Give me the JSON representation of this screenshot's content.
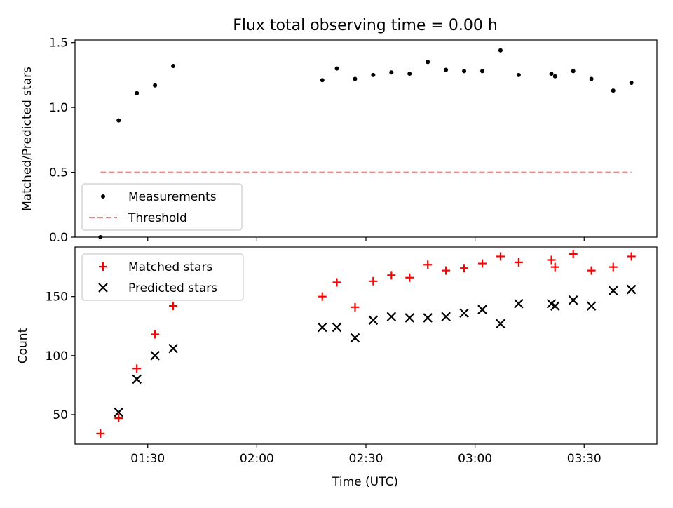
{
  "chart_data": {
    "title": "Flux total observing time = 0.00 h",
    "xlabel": "Time (UTC)",
    "x_ticks": [
      {
        "minutes": 90,
        "label": "01:30"
      },
      {
        "minutes": 120,
        "label": "02:00"
      },
      {
        "minutes": 150,
        "label": "02:30"
      },
      {
        "minutes": 180,
        "label": "03:00"
      },
      {
        "minutes": 210,
        "label": "03:30"
      }
    ],
    "xlim": [
      "01:10",
      "03:50"
    ],
    "panels": [
      {
        "type": "scatter",
        "ylabel": "Matched/Predicted stars",
        "ylim": [
          0,
          1.52
        ],
        "yticks": [
          0.0,
          0.5,
          1.0,
          1.5
        ],
        "ytick_labels": [
          "0.0",
          "0.5",
          "1.0",
          "1.5"
        ],
        "legend_position": "lower-left",
        "series": [
          {
            "name": "Measurements",
            "marker": "dot",
            "color": "#000000",
            "x": [
              "01:17",
              "01:22",
              "01:27",
              "01:32",
              "01:37",
              "02:18",
              "02:22",
              "02:27",
              "02:32",
              "02:37",
              "02:42",
              "02:47",
              "02:52",
              "02:57",
              "03:02",
              "03:07",
              "03:12",
              "03:21",
              "03:22",
              "03:27",
              "03:32",
              "03:38",
              "03:43"
            ],
            "y": [
              0.0,
              0.9,
              1.11,
              1.17,
              1.32,
              1.21,
              1.3,
              1.22,
              1.25,
              1.27,
              1.26,
              1.35,
              1.29,
              1.28,
              1.28,
              1.44,
              1.25,
              1.26,
              1.24,
              1.28,
              1.22,
              1.13,
              1.19
            ]
          },
          {
            "name": "Threshold",
            "marker": "dashed-line",
            "color": "#ff7f7f",
            "x": [
              "01:17",
              "03:43"
            ],
            "y": [
              0.5,
              0.5
            ]
          }
        ]
      },
      {
        "type": "scatter",
        "ylabel": "Count",
        "ylim": [
          25,
          192
        ],
        "yticks": [
          50,
          100,
          150
        ],
        "ytick_labels": [
          "50",
          "100",
          "150"
        ],
        "legend_position": "upper-left",
        "series": [
          {
            "name": "Matched stars",
            "marker": "plus",
            "color": "#ff0000",
            "x": [
              "01:17",
              "01:22",
              "01:27",
              "01:32",
              "01:37",
              "02:18",
              "02:22",
              "02:27",
              "02:32",
              "02:37",
              "02:42",
              "02:47",
              "02:52",
              "02:57",
              "03:02",
              "03:07",
              "03:12",
              "03:21",
              "03:22",
              "03:27",
              "03:32",
              "03:38",
              "03:43"
            ],
            "y": [
              34,
              47,
              89,
              118,
              142,
              150,
              162,
              141,
              163,
              168,
              166,
              177,
              172,
              174,
              178,
              184,
              179,
              181,
              175,
              186,
              172,
              175,
              184
            ]
          },
          {
            "name": "Predicted stars",
            "marker": "x",
            "color": "#000000",
            "x": [
              "01:22",
              "01:27",
              "01:32",
              "01:37",
              "02:18",
              "02:22",
              "02:27",
              "02:32",
              "02:37",
              "02:42",
              "02:47",
              "02:52",
              "02:57",
              "03:02",
              "03:07",
              "03:12",
              "03:21",
              "03:22",
              "03:27",
              "03:32",
              "03:38",
              "03:43"
            ],
            "y": [
              52,
              80,
              100,
              106,
              124,
              124,
              115,
              130,
              133,
              132,
              132,
              133,
              136,
              139,
              127,
              144,
              144,
              142,
              147,
              142,
              155,
              156
            ]
          }
        ]
      }
    ]
  }
}
